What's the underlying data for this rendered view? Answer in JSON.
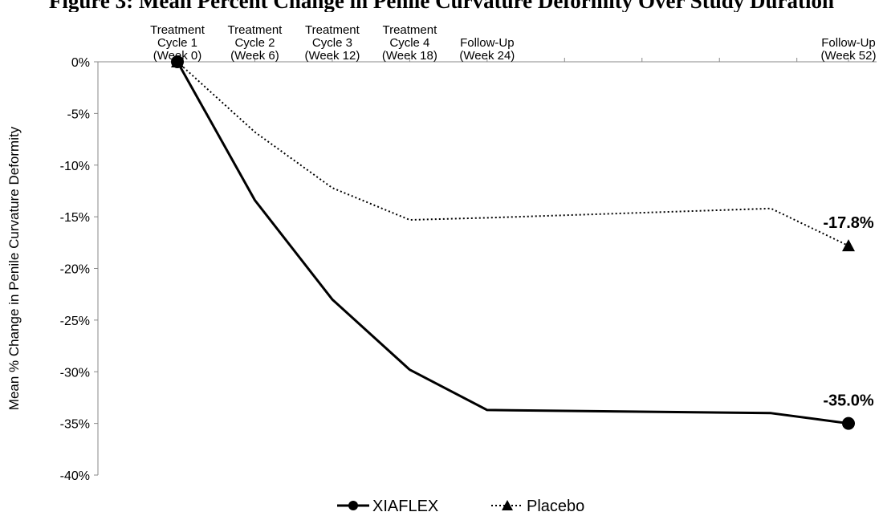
{
  "title": "Figure 3: Mean Percent Change in Penile Curvature Deformity Over Study Duration",
  "chart_data": {
    "type": "line",
    "title": "Figure 3: Mean Percent Change in Penile Curvature Deformity Over Study Duration",
    "ylabel": "Mean % Change in Penile Curvature Deformity",
    "xlabel": "",
    "ylim": [
      -40,
      0
    ],
    "yticks": [
      "0%",
      "-5%",
      "-10%",
      "-15%",
      "-20%",
      "-25%",
      "-30%",
      "-35%",
      "-40%"
    ],
    "x": [
      0,
      6,
      12,
      18,
      24,
      30,
      36,
      42,
      48,
      52
    ],
    "top_labels": [
      {
        "week": 0,
        "lines": [
          "Treatment",
          "Cycle 1",
          "(Week 0)"
        ]
      },
      {
        "week": 6,
        "lines": [
          "Treatment",
          "Cycle 2",
          "(Week 6)"
        ]
      },
      {
        "week": 12,
        "lines": [
          "Treatment",
          "Cycle 3",
          "(Week 12)"
        ]
      },
      {
        "week": 18,
        "lines": [
          "Treatment",
          "Cycle 4",
          "(Week 18)"
        ]
      },
      {
        "week": 24,
        "lines": [
          "Follow-Up",
          "(Week 24)"
        ]
      },
      {
        "week": 52,
        "lines": [
          "Follow-Up",
          "(Week 52)"
        ]
      }
    ],
    "series": [
      {
        "name": "XIAFLEX",
        "x": [
          0,
          6,
          12,
          18,
          24,
          46,
          52
        ],
        "values": [
          0,
          -13.4,
          -23.0,
          -29.8,
          -33.7,
          -34.0,
          -35.0
        ],
        "style": "solid",
        "marker": "circle",
        "color": "#000000",
        "end_label": "-35.0%"
      },
      {
        "name": "Placebo",
        "x": [
          0,
          6,
          12,
          18,
          24,
          46,
          52
        ],
        "values": [
          0,
          -6.8,
          -12.2,
          -15.3,
          -15.1,
          -14.2,
          -17.8
        ],
        "style": "dotted",
        "marker": "triangle",
        "color": "#000000",
        "end_label": "-17.8%"
      }
    ],
    "grid": false,
    "legend_position": "bottom-center"
  }
}
